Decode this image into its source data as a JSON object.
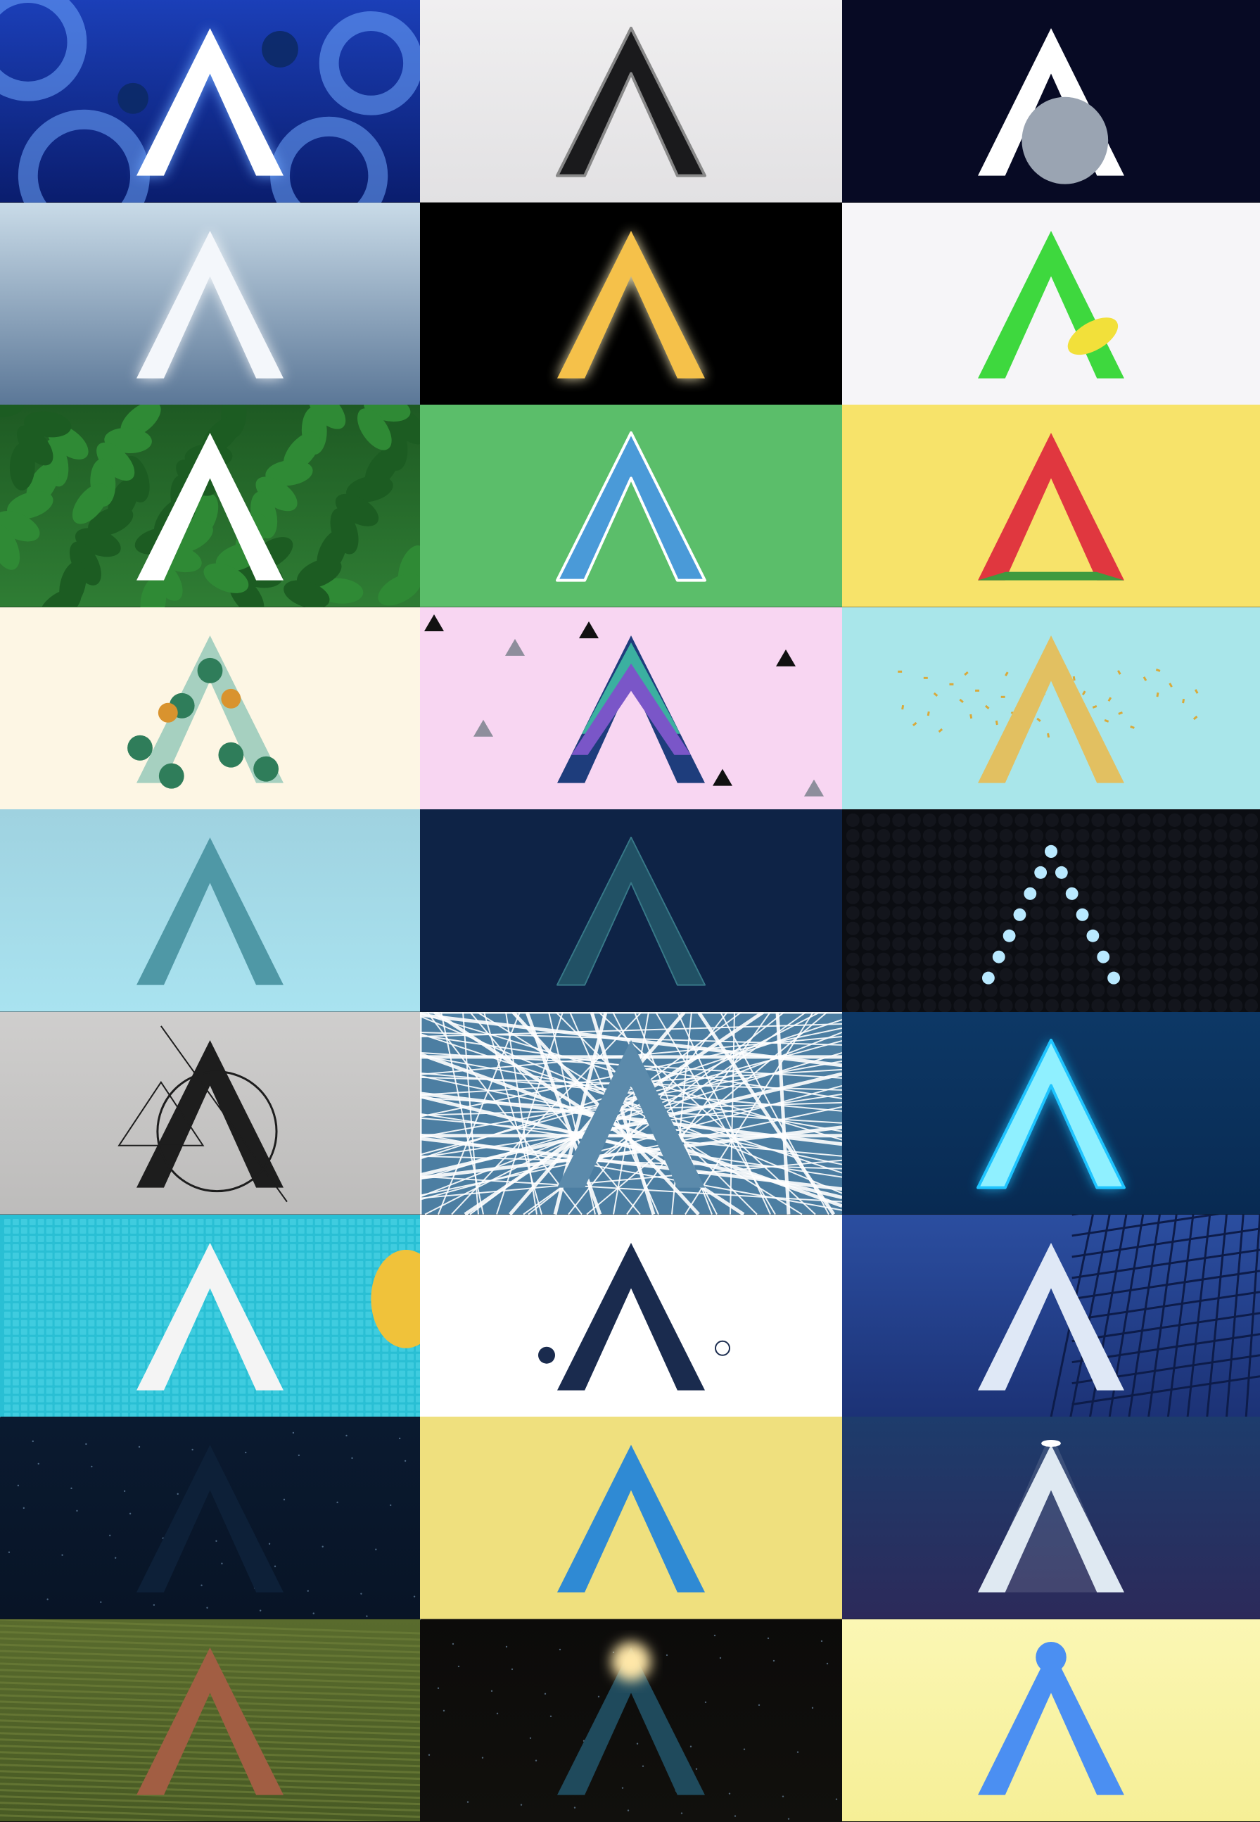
{
  "grid": {
    "columns": 3,
    "rows": 9
  },
  "tiles": [
    {
      "name": "tile-blue-neon-shapes",
      "bg": [
        "#1b3fb8",
        "#0a1d6e"
      ],
      "style": "glow",
      "letter": "#ffffff",
      "accent": "#6fa8ff"
    },
    {
      "name": "tile-black-tubes",
      "bg": [
        "#f0eff0",
        "#e2e1e3"
      ],
      "style": "tubes",
      "letter": "#1a1a1c",
      "accent": "#888888"
    },
    {
      "name": "tile-moon",
      "bg": [
        "#070a24",
        "#070a24"
      ],
      "style": "moon",
      "letter": "#ffffff",
      "accent": "#9aa4b2"
    },
    {
      "name": "tile-cloud",
      "bg": [
        "#c9dbe8",
        "#5b7797"
      ],
      "style": "cloud",
      "letter": "#f4f7fb",
      "accent": "#ffffff"
    },
    {
      "name": "tile-sparkler",
      "bg": [
        "#000000",
        "#000000"
      ],
      "style": "sparkler",
      "letter": "#f5c14a",
      "accent": "#fff3c0"
    },
    {
      "name": "tile-green-lemon",
      "bg": [
        "#f6f5f8",
        "#f6f5f8"
      ],
      "style": "lemon",
      "letter": "#3ed83e",
      "accent": "#f2e03a"
    },
    {
      "name": "tile-leaves",
      "bg": [
        "#1e5a23",
        "#2f7d34"
      ],
      "style": "leaves",
      "letter": "#ffffff",
      "accent": "#4aa34e"
    },
    {
      "name": "tile-blue-on-green",
      "bg": [
        "#5bbe6a",
        "#5bbe6a"
      ],
      "style": "outline",
      "letter": "#4a9ad8",
      "accent": "#ffffff"
    },
    {
      "name": "tile-watermelon",
      "bg": [
        "#f7e36a",
        "#f7e36a"
      ],
      "style": "melon",
      "letter": "#e0373f",
      "accent": "#3f9a3f"
    },
    {
      "name": "tile-village-illustration",
      "bg": [
        "#fdf6e4",
        "#fdf6e4"
      ],
      "style": "village",
      "letter": "#5fb0a2",
      "accent": "#d9932e"
    },
    {
      "name": "tile-pink-triangles",
      "bg": [
        "#f8d6f2",
        "#f8d6f2"
      ],
      "style": "stripes",
      "letter": "#1e3d7c",
      "accent": "#3bb0a0"
    },
    {
      "name": "tile-gold-balloon",
      "bg": [
        "#a9e6ea",
        "#a9e6ea"
      ],
      "style": "gold",
      "letter": "#e2c061",
      "accent": "#fff1b8"
    },
    {
      "name": "tile-brush-stroke",
      "bg": [
        "#9fd2e0",
        "#a9e3f0"
      ],
      "style": "brush",
      "letter": "#4f98a6",
      "accent": "#bfe6ee"
    },
    {
      "name": "tile-grid-mesh",
      "bg": [
        "#0e2346",
        "#0e2346"
      ],
      "style": "mesh",
      "letter": "#2f6f7a",
      "accent": "#4fa2ac"
    },
    {
      "name": "tile-led-dots",
      "bg": [
        "#0b0d12",
        "#0b0d12"
      ],
      "style": "dots",
      "letter": "#b9e9ff",
      "accent": "#4ab7f2"
    },
    {
      "name": "tile-geometric-paper",
      "bg": [
        "#cfcecd",
        "#bdbcbb"
      ],
      "style": "geometric",
      "letter": "#1d1d1d",
      "accent": "#1d1d1d"
    },
    {
      "name": "tile-city-map",
      "bg": [
        "#4c7ea2",
        "#4c7ea2"
      ],
      "style": "map",
      "letter": "#5b8aab",
      "accent": "#ffffff"
    },
    {
      "name": "tile-neon-tube",
      "bg": [
        "#0d3866",
        "#082a52"
      ],
      "style": "neon",
      "letter": "#8ff0ff",
      "accent": "#1ec4ff"
    },
    {
      "name": "tile-pool-tiles",
      "bg": [
        "#29bfd4",
        "#29bfd4"
      ],
      "style": "pool",
      "letter": "#f4f4f4",
      "accent": "#f0c23a"
    },
    {
      "name": "tile-astronaut",
      "bg": [
        "#ffffff",
        "#ffffff"
      ],
      "style": "space",
      "letter": "#1a2b4e",
      "accent": "#e09b4a"
    },
    {
      "name": "tile-building",
      "bg": [
        "#2b4ea0",
        "#1c3276"
      ],
      "style": "building",
      "letter": "#dfe8f6",
      "accent": "#5b7fd0"
    },
    {
      "name": "tile-night-sky",
      "bg": [
        "#0a1a30",
        "#081426"
      ],
      "style": "night",
      "letter": "#0d2038",
      "accent": "#2f6c8a"
    },
    {
      "name": "tile-yarn",
      "bg": [
        "#efe07e",
        "#efe07e"
      ],
      "style": "yarn",
      "letter": "#2f8ad4",
      "accent": "#7cc6ff"
    },
    {
      "name": "tile-spotlight",
      "bg": [
        "#1d3c6c",
        "#2c2a5a"
      ],
      "style": "spotlight",
      "letter": "#dfe9f2",
      "accent": "#4f8ee0"
    },
    {
      "name": "tile-field-aerial",
      "bg": [
        "#596b2d",
        "#485a24"
      ],
      "style": "field",
      "letter": "#a25e43",
      "accent": "#c9a07a"
    },
    {
      "name": "tile-lamp-dark",
      "bg": [
        "#0c0b0a",
        "#11100d"
      ],
      "style": "lamp",
      "letter": "#1f4a5c",
      "accent": "#ffe7a8"
    },
    {
      "name": "tile-blue-balloon",
      "bg": [
        "#fbf7b4",
        "#f6ef96"
      ],
      "style": "balloon",
      "letter": "#4b8ff2",
      "accent": "#9cc4ff"
    }
  ]
}
